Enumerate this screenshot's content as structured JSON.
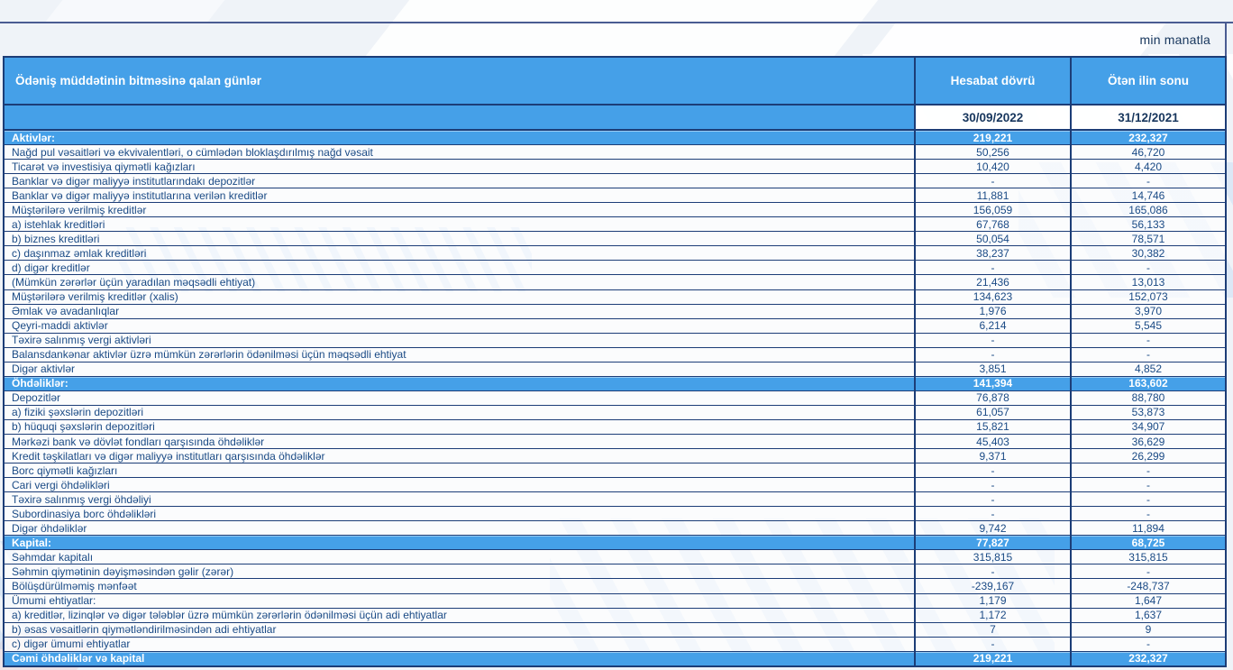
{
  "meta": {
    "unit_label": "min manatla"
  },
  "colors": {
    "accent_blue": "#45a0e8",
    "border_navy": "#1c3d77",
    "slate_line": "#4a5c92",
    "text_navy": "#1a4a85",
    "dark_navy": "#17365d"
  },
  "table": {
    "header": {
      "col1": "Ödəniş müddətinin bitməsinə qalan günlər",
      "col2": "Hesabat dövrü",
      "col3": "Ötən ilin sonu"
    },
    "dates": {
      "current": "30/09/2022",
      "previous": "31/12/2021"
    },
    "rows": [
      {
        "type": "section",
        "label": "Aktivlər:",
        "v1": "219,221",
        "v2": "232,327"
      },
      {
        "type": "item",
        "label": "Nağd pul vəsaitləri və  ekvivalentləri, o cümlədən bloklaşdırılmış nağd vəsait",
        "v1": "50,256",
        "v2": "46,720"
      },
      {
        "type": "item",
        "label": "Ticarət və investisiya qiymətli kağızları",
        "v1": "10,420",
        "v2": "4,420"
      },
      {
        "type": "item",
        "label": "Banklar və digər maliyyə institutlarındakı depozitlər",
        "v1": "-",
        "v2": "-"
      },
      {
        "type": "item",
        "label": "Banklar və digər maliyyə institutlarına verilən kreditlər",
        "v1": "11,881",
        "v2": "14,746"
      },
      {
        "type": "item",
        "label": "Müştərilərə verilmiş kreditlər",
        "v1": "156,059",
        "v2": "165,086"
      },
      {
        "type": "item",
        "label": "a) istehlak kreditləri",
        "v1": "67,768",
        "v2": "56,133"
      },
      {
        "type": "item",
        "label": "b) biznes kreditləri",
        "v1": "50,054",
        "v2": "78,571"
      },
      {
        "type": "item",
        "label": "c) daşınmaz əmlak kreditləri",
        "v1": "38,237",
        "v2": "30,382"
      },
      {
        "type": "item",
        "label": "d) digər kreditlər",
        "v1": "-",
        "v2": "-"
      },
      {
        "type": "item",
        "label": "(Mümkün zərərlər üçün yaradılan məqsədli ehtiyat)",
        "v1": "21,436",
        "v2": "13,013"
      },
      {
        "type": "item",
        "label": "Müştərilərə verilmiş kreditlər (xalis)",
        "v1": "134,623",
        "v2": "152,073"
      },
      {
        "type": "item",
        "label": "Əmlak və avadanlıqlar",
        "v1": "1,976",
        "v2": "3,970"
      },
      {
        "type": "item",
        "label": "Qeyri-maddi aktivlər",
        "v1": "6,214",
        "v2": "5,545"
      },
      {
        "type": "item",
        "label": "Təxirə salınmış vergi aktivləri",
        "v1": "-",
        "v2": "-"
      },
      {
        "type": "item",
        "label": "Balansdankənar aktivlər üzrə mümkün zərərlərin ödənilməsi üçün məqsədli ehtiyat",
        "v1": "-",
        "v2": "-"
      },
      {
        "type": "item",
        "label": "Digər aktivlər",
        "v1": "3,851",
        "v2": "4,852"
      },
      {
        "type": "section",
        "label": "Öhdəliklər:",
        "v1": "141,394",
        "v2": "163,602"
      },
      {
        "type": "item",
        "label": "Depozitlər",
        "v1": "76,878",
        "v2": "88,780"
      },
      {
        "type": "item",
        "label": "a) fiziki şəxslərin depozitləri",
        "v1": "61,057",
        "v2": "53,873"
      },
      {
        "type": "item",
        "label": "b) hüquqi şəxslərin depozitləri",
        "v1": "15,821",
        "v2": "34,907"
      },
      {
        "type": "item",
        "label": "Mərkəzi bank və dövlət fondları qarşısında öhdəliklər",
        "v1": "45,403",
        "v2": "36,629"
      },
      {
        "type": "item",
        "label": "Kredit təşkilatları və digər maliyyə institutları qarşısında öhdəliklər",
        "v1": "9,371",
        "v2": "26,299"
      },
      {
        "type": "item",
        "label": "Borc qiymətli kağızları",
        "v1": "-",
        "v2": "-"
      },
      {
        "type": "item",
        "label": "Cari vergi öhdəlikləri",
        "v1": "-",
        "v2": "-"
      },
      {
        "type": "item",
        "label": "Təxirə salınmış vergi öhdəliyi",
        "v1": "-",
        "v2": "-"
      },
      {
        "type": "item",
        "label": "Subordinasiya borc öhdəlikləri",
        "v1": "-",
        "v2": "-"
      },
      {
        "type": "item",
        "label": "Digər öhdəliklər",
        "v1": "9,742",
        "v2": "11,894"
      },
      {
        "type": "section",
        "label": "Kapital:",
        "v1": "77,827",
        "v2": "68,725"
      },
      {
        "type": "item",
        "label": "Səhmdar kapitalı",
        "v1": "315,815",
        "v2": "315,815"
      },
      {
        "type": "item",
        "label": "Səhmin qiymətinin dəyişməsindən gəlir (zərər)",
        "v1": "-",
        "v2": "-"
      },
      {
        "type": "item",
        "label": "Bölüşdürülməmiş mənfəət",
        "v1": "-239,167",
        "v2": "-248,737"
      },
      {
        "type": "item",
        "label": "Ümumi ehtiyatlar:",
        "v1": "1,179",
        "v2": "1,647"
      },
      {
        "type": "item",
        "label": "a) kreditlər, lizinqlər və digər tələblər üzrə mümkün zərərlərin ödənilməsi üçün adi ehtiyatlar",
        "v1": "1,172",
        "v2": "1,637"
      },
      {
        "type": "item",
        "label": "b) əsas vəsaitlərin qiymətləndirilməsindən adi ehtiyatlar",
        "v1": "7",
        "v2": "9"
      },
      {
        "type": "item",
        "label": "c) digər ümumi ehtiyatlar",
        "v1": "-",
        "v2": "-"
      },
      {
        "type": "section",
        "label": "Cəmi öhdəliklər və kapital",
        "v1": "219,221",
        "v2": "232,327"
      }
    ]
  }
}
